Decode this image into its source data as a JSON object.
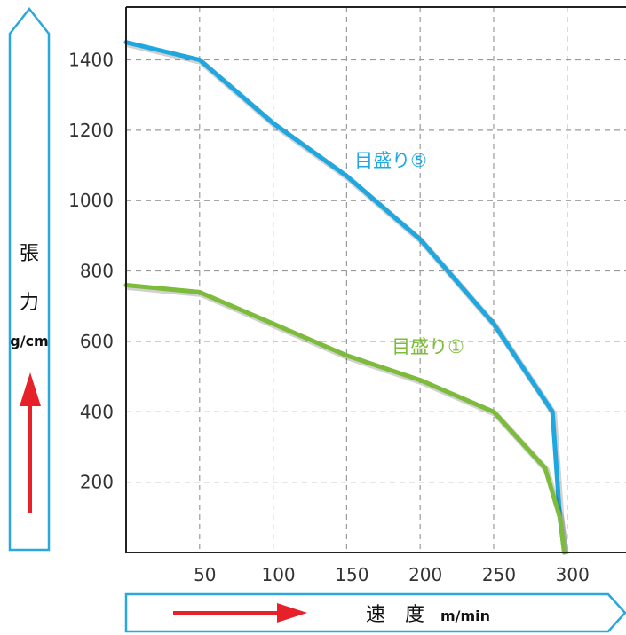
{
  "chart_data": {
    "type": "line",
    "xlabel": "速　度",
    "xunit": "m/min",
    "ylabel_chars": [
      "張",
      "力"
    ],
    "yunit": "g/cm",
    "xlim": [
      0,
      340
    ],
    "ylim": [
      0,
      1550
    ],
    "x_ticks": [
      50,
      100,
      150,
      200,
      250,
      300
    ],
    "y_ticks": [
      200,
      400,
      600,
      800,
      1000,
      1200,
      1400
    ],
    "grid": true,
    "series": [
      {
        "name": "目盛り⑤",
        "color": "#1fa7e0",
        "x": [
          0,
          50,
          100,
          150,
          200,
          250,
          290,
          295,
          298
        ],
        "y": [
          1450,
          1400,
          1220,
          1070,
          890,
          650,
          400,
          100,
          0
        ]
      },
      {
        "name": "目盛り①",
        "color": "#7dbb3a",
        "x": [
          0,
          50,
          100,
          150,
          200,
          250,
          285,
          295,
          298
        ],
        "y": [
          760,
          740,
          650,
          560,
          490,
          400,
          240,
          100,
          0
        ]
      }
    ]
  },
  "colors": {
    "frame": "#29a8dd",
    "arrow": "#e6212a",
    "grid": "#9a9a9a",
    "axis": "#222222"
  }
}
